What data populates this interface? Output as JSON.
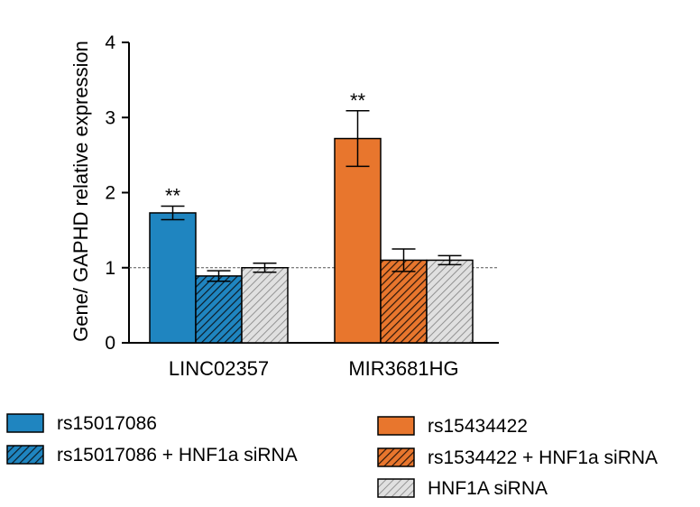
{
  "chart_data": {
    "type": "bar",
    "title": "",
    "xlabel": "",
    "ylabel": "Gene/ GAPHD relative expression",
    "ylim": [
      0,
      4
    ],
    "yticks": [
      "0",
      "1",
      "2",
      "3",
      "4"
    ],
    "reference_line": 1,
    "grid": false,
    "groups": [
      {
        "label": "LINC02357",
        "bars": [
          {
            "series": "rs15017086",
            "value": 1.73,
            "err": 0.09,
            "annotation": "**",
            "color": "#1f85c0",
            "hatch": false
          },
          {
            "series": "rs15017086 + HNF1a siRNA",
            "value": 0.89,
            "err": 0.07,
            "annotation": "",
            "color": "#1f85c0",
            "hatch": true
          },
          {
            "series": "HNF1A siRNA",
            "value": 1.0,
            "err": 0.06,
            "annotation": "",
            "color": "#d3d3d3",
            "hatch": true
          }
        ]
      },
      {
        "label": "MIR3681HG",
        "bars": [
          {
            "series": "rs15434422",
            "value": 2.72,
            "err": 0.37,
            "annotation": "**",
            "color": "#e8762d",
            "hatch": false
          },
          {
            "series": "rs1534422 + HNF1a siRNA",
            "value": 1.1,
            "err": 0.15,
            "annotation": "",
            "color": "#e8762d",
            "hatch": true
          },
          {
            "series": "HNF1A siRNA",
            "value": 1.1,
            "err": 0.06,
            "annotation": "",
            "color": "#d3d3d3",
            "hatch": true
          }
        ]
      }
    ],
    "legend": [
      {
        "label": "rs15017086",
        "color": "#1f85c0",
        "hatch": false
      },
      {
        "label": "rs15017086 + HNF1a siRNA",
        "color": "#1f85c0",
        "hatch": true
      },
      {
        "label": "rs15434422",
        "color": "#e8762d",
        "hatch": false
      },
      {
        "label": "rs1534422 + HNF1a siRNA",
        "color": "#e8762d",
        "hatch": true
      },
      {
        "label": "HNF1A siRNA",
        "color": "#d3d3d3",
        "hatch": true
      }
    ]
  }
}
